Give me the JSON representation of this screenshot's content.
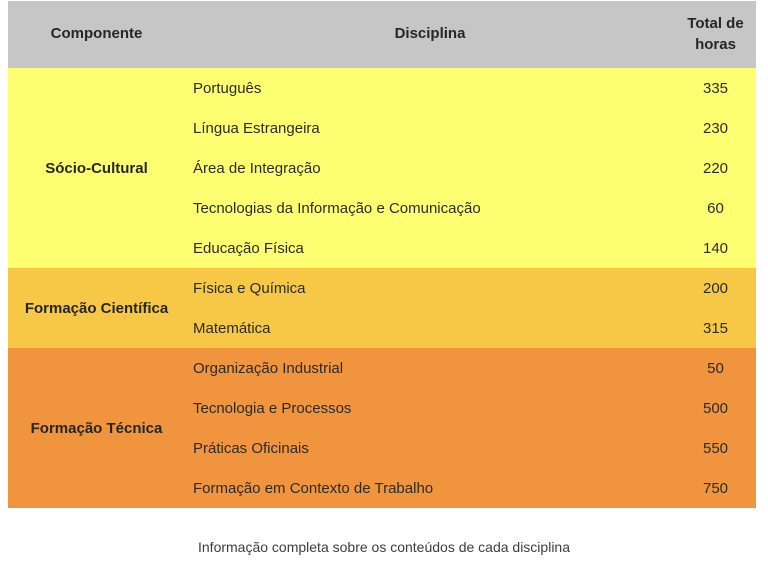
{
  "colors": {
    "header_bg": "#c6c6c6",
    "group_socio_cultural_bg": "#fdff70",
    "group_formacao_cientifica_bg": "#f6c845",
    "group_formacao_tecnica_bg": "#f0943e",
    "header_text": "#262626",
    "body_text": "#2b2b2b",
    "caption_text": "#3d3d3d",
    "page_bg": "#ffffff"
  },
  "table": {
    "headers": {
      "componente": "Componente",
      "disciplina": "Disciplina",
      "total": "Total de horas"
    },
    "groups": [
      {
        "componente": "Sócio-Cultural",
        "bg": "#fdff70",
        "rows": [
          {
            "disciplina": "Português",
            "horas": "335"
          },
          {
            "disciplina": "Língua Estrangeira",
            "horas": "230"
          },
          {
            "disciplina": "Área de Integração",
            "horas": "220"
          },
          {
            "disciplina": "Tecnologias da Informação e Comunicação",
            "horas": "60"
          },
          {
            "disciplina": "Educação Física",
            "horas": "140"
          }
        ]
      },
      {
        "componente": "Formação Científica",
        "bg": "#f6c845",
        "rows": [
          {
            "disciplina": "Física e Química",
            "horas": "200"
          },
          {
            "disciplina": "Matemática",
            "horas": "315"
          }
        ]
      },
      {
        "componente": "Formação Técnica",
        "bg": "#f0943e",
        "rows": [
          {
            "disciplina": "Organização Industrial",
            "horas": "50"
          },
          {
            "disciplina": "Tecnologia e Processos",
            "horas": "500"
          },
          {
            "disciplina": "Práticas Oficinais",
            "horas": "550"
          },
          {
            "disciplina": "Formação em Contexto de Trabalho",
            "horas": "750"
          }
        ]
      }
    ]
  },
  "caption": "Informação completa sobre os conteúdos de cada disciplina",
  "chart_data": {
    "type": "table",
    "title": "",
    "columns": [
      "Componente",
      "Disciplina",
      "Total de horas"
    ],
    "rows": [
      [
        "Sócio-Cultural",
        "Português",
        335
      ],
      [
        "Sócio-Cultural",
        "Língua Estrangeira",
        230
      ],
      [
        "Sócio-Cultural",
        "Área de Integração",
        220
      ],
      [
        "Sócio-Cultural",
        "Tecnologias da Informação e Comunicação",
        60
      ],
      [
        "Sócio-Cultural",
        "Educação Física",
        140
      ],
      [
        "Formação Científica",
        "Física e Química",
        200
      ],
      [
        "Formação Científica",
        "Matemática",
        315
      ],
      [
        "Formação Técnica",
        "Organização Industrial",
        50
      ],
      [
        "Formação Técnica",
        "Tecnologia e Processos",
        500
      ],
      [
        "Formação Técnica",
        "Práticas Oficinais",
        550
      ],
      [
        "Formação Técnica",
        "Formação em Contexto de Trabalho",
        750
      ]
    ],
    "caption": "Informação completa sobre os conteúdos de cada disciplina",
    "layout_hints": {
      "group_colors": [
        "#fdff70",
        "#f6c845",
        "#f0943e"
      ],
      "header_bg": "#c6c6c6",
      "grid": false
    }
  }
}
